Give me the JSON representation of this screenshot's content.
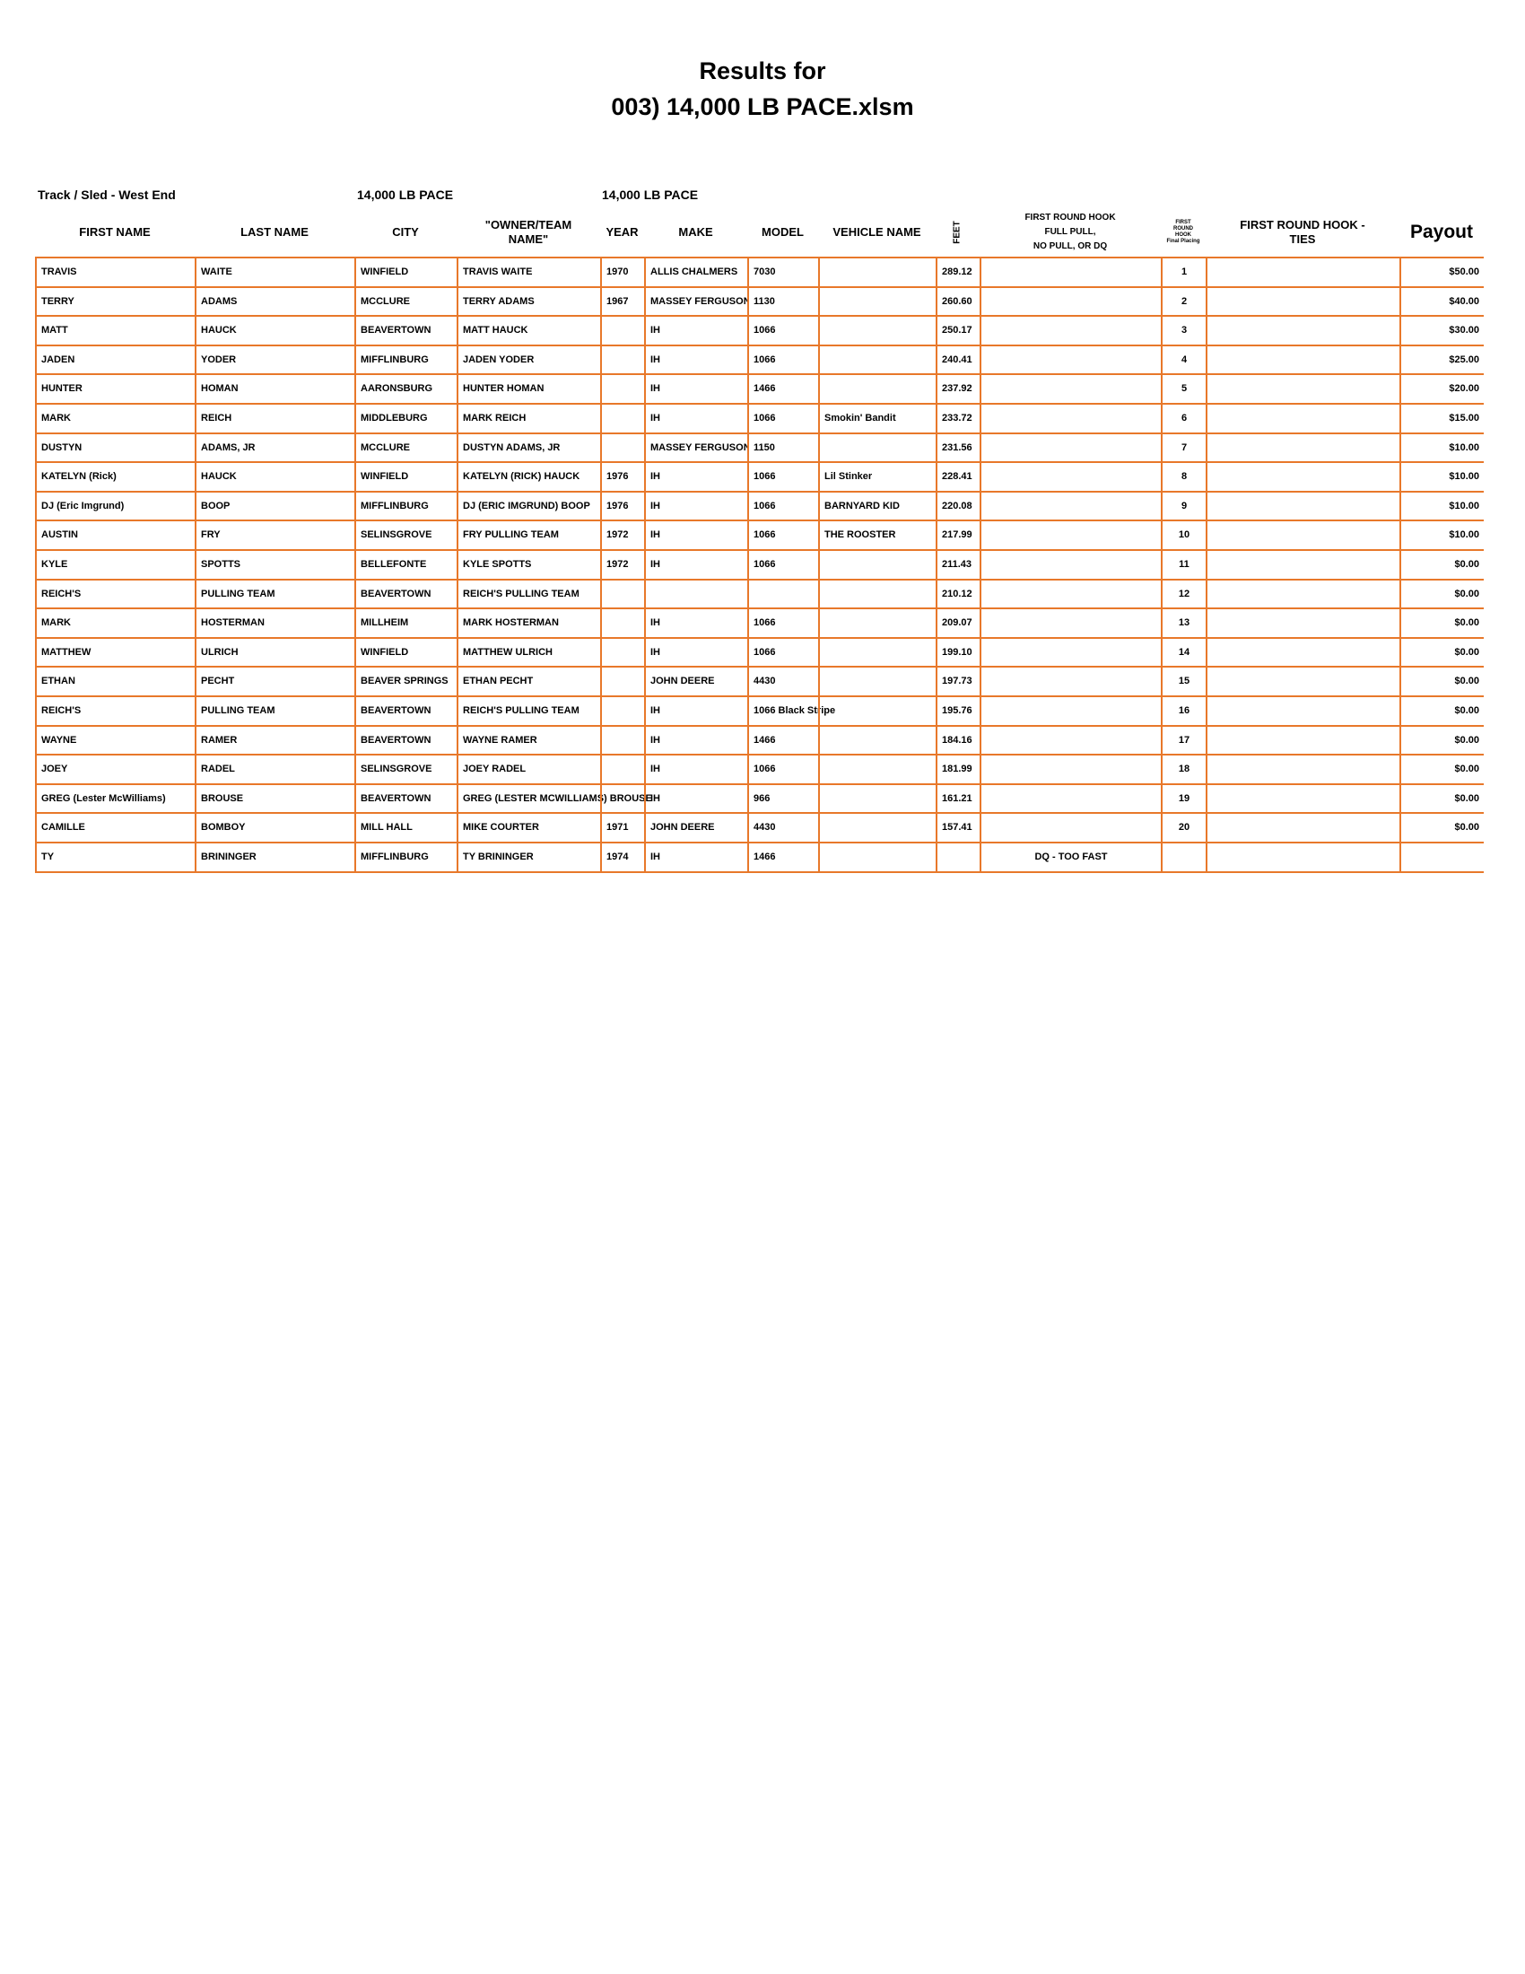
{
  "header": {
    "title": "Results for",
    "subtitle": "003) 14,000 LB PACE.xlsm"
  },
  "info": [
    "Track / Sled - West End",
    "14,000 LB PACE",
    "14,000 LB PACE"
  ],
  "table": {
    "columns": [
      "FIRST NAME",
      "LAST NAME",
      "CITY",
      "\"OWNER/TEAM\nNAME\"",
      "YEAR",
      "MAKE",
      "MODEL",
      "VEHICLE NAME",
      "FEET",
      "FIRST ROUND HOOK\nFULL PULL,\nNO PULL, OR DQ",
      "FIRST\nROUND\nHOOK\nFinal Placing",
      "FIRST ROUND HOOK -\nTIES",
      "Payout"
    ],
    "rows": [
      [
        "TRAVIS",
        "WAITE",
        "WINFIELD",
        "TRAVIS WAITE",
        "1970",
        "ALLIS CHALMERS",
        "7030",
        null,
        "289.12",
        null,
        "1",
        null,
        "$50.00"
      ],
      [
        "TERRY",
        "ADAMS",
        "MCCLURE",
        "TERRY ADAMS",
        "1967",
        "MASSEY FERGUSON",
        "1130",
        null,
        "260.60",
        null,
        "2",
        null,
        "$40.00"
      ],
      [
        "MATT",
        "HAUCK",
        "BEAVERTOWN",
        "MATT HAUCK",
        null,
        "IH",
        "1066",
        null,
        "250.17",
        null,
        "3",
        null,
        "$30.00"
      ],
      [
        "JADEN",
        "YODER",
        "MIFFLINBURG",
        "JADEN YODER",
        null,
        "IH",
        "1066",
        null,
        "240.41",
        null,
        "4",
        null,
        "$25.00"
      ],
      [
        "HUNTER",
        "HOMAN",
        "AARONSBURG",
        "HUNTER  HOMAN",
        null,
        "IH",
        "1466",
        null,
        "237.92",
        null,
        "5",
        null,
        "$20.00"
      ],
      [
        "MARK",
        "REICH",
        "MIDDLEBURG",
        "MARK REICH",
        null,
        "IH",
        "1066",
        "Smokin' Bandit",
        "233.72",
        null,
        "6",
        null,
        "$15.00"
      ],
      [
        "DUSTYN",
        "ADAMS, JR",
        "MCCLURE",
        "DUSTYN ADAMS, JR",
        null,
        "MASSEY FERGUSON",
        "1150",
        null,
        "231.56",
        null,
        "7",
        null,
        "$10.00"
      ],
      [
        "KATELYN (Rick)",
        "HAUCK",
        "WINFIELD",
        "KATELYN (RICK) HAUCK",
        "1976",
        "IH",
        "1066",
        "Lil Stinker",
        "228.41",
        null,
        "8",
        null,
        "$10.00"
      ],
      [
        "DJ (Eric Imgrund)",
        "BOOP",
        "MIFFLINBURG",
        "DJ (ERIC IMGRUND) BOOP",
        "1976",
        "IH",
        "1066",
        "BARNYARD KID",
        "220.08",
        null,
        "9",
        null,
        "$10.00"
      ],
      [
        "AUSTIN",
        "FRY",
        "SELINSGROVE",
        "FRY PULLING TEAM",
        "1972",
        "IH",
        "1066",
        "THE ROOSTER",
        "217.99",
        null,
        "10",
        null,
        "$10.00"
      ],
      [
        "KYLE",
        "SPOTTS",
        "BELLEFONTE",
        "KYLE SPOTTS",
        "1972",
        "IH",
        "1066",
        null,
        "211.43",
        null,
        "11",
        null,
        "$0.00"
      ],
      [
        "REICH'S",
        "PULLING TEAM",
        "BEAVERTOWN",
        "REICH'S  PULLING TEAM",
        null,
        null,
        null,
        null,
        "210.12",
        null,
        "12",
        null,
        "$0.00"
      ],
      [
        "MARK",
        "HOSTERMAN",
        "MILLHEIM",
        "MARK HOSTERMAN",
        null,
        "IH",
        "1066",
        null,
        "209.07",
        null,
        "13",
        null,
        "$0.00"
      ],
      [
        "MATTHEW",
        "ULRICH",
        "WINFIELD",
        "MATTHEW ULRICH",
        null,
        "IH",
        "1066",
        null,
        "199.10",
        null,
        "14",
        null,
        "$0.00"
      ],
      [
        "ETHAN",
        "PECHT",
        "BEAVER SPRINGS",
        "ETHAN PECHT",
        null,
        "JOHN DEERE",
        "4430",
        null,
        "197.73",
        null,
        "15",
        null,
        "$0.00"
      ],
      [
        "REICH'S",
        "PULLING TEAM",
        "BEAVERTOWN",
        "REICH'S  PULLING TEAM",
        null,
        "IH",
        "1066 Black Stripe",
        null,
        "195.76",
        null,
        "16",
        null,
        "$0.00"
      ],
      [
        "WAYNE",
        "RAMER",
        "BEAVERTOWN",
        "WAYNE RAMER",
        null,
        "IH",
        "1466",
        null,
        "184.16",
        null,
        "17",
        null,
        "$0.00"
      ],
      [
        "JOEY",
        "RADEL",
        "SELINSGROVE",
        "JOEY RADEL",
        null,
        "IH",
        "1066",
        null,
        "181.99",
        null,
        "18",
        null,
        "$0.00"
      ],
      [
        "GREG (Lester McWilliams)",
        "BROUSE",
        "BEAVERTOWN",
        "GREG (LESTER MCWILLIAMS) BROUSE",
        null,
        "IH",
        "966",
        null,
        "161.21",
        null,
        "19",
        null,
        "$0.00"
      ],
      [
        "CAMILLE",
        "BOMBOY",
        "MILL HALL",
        "MIKE COURTER",
        "1971",
        "JOHN DEERE",
        "4430",
        null,
        "157.41",
        null,
        "20",
        null,
        "$0.00"
      ],
      [
        "TY",
        "BRININGER",
        "MIFFLINBURG",
        "TY BRININGER",
        "1974",
        "IH",
        "1466",
        null,
        null,
        "DQ - TOO FAST",
        null,
        null,
        null
      ]
    ]
  }
}
